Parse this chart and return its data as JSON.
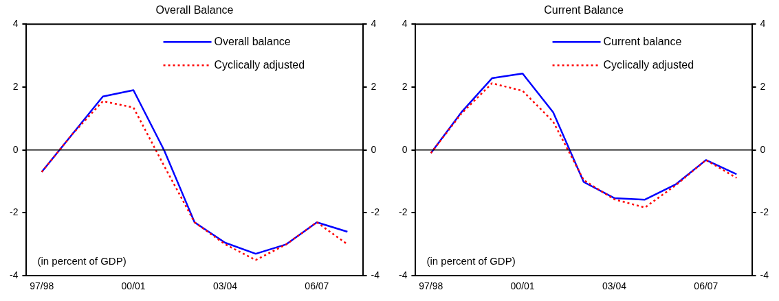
{
  "chart_data": [
    {
      "type": "line",
      "title": "Overall Balance",
      "categories": [
        "97/98",
        null,
        null,
        "00/01",
        null,
        null,
        "03/04",
        null,
        null,
        "06/07",
        null
      ],
      "marker": "none",
      "legend": "top right",
      "ylim": [
        -4,
        4
      ],
      "yticks": [
        -4,
        -2,
        0,
        2,
        4
      ],
      "y2lim": [
        -4,
        4
      ],
      "y2ticks": [
        -4,
        -2,
        0,
        2,
        4
      ],
      "ref_lines": [
        {
          "axis": "y",
          "value": 0,
          "color": "#000000"
        }
      ],
      "annotations": [
        "(in percent of GDP)"
      ],
      "series": [
        {
          "name": "Overall balance",
          "color": "#0000ff",
          "line_style": "solid",
          "values": [
            -0.7,
            0.5,
            1.7,
            1.9,
            0,
            -2.3,
            -2.95,
            -3.3,
            -3.0,
            -2.3,
            -2.6
          ]
        },
        {
          "name": "Cyclically adjusted",
          "color": "#ff0000",
          "line_style": "dotted",
          "values": [
            -0.7,
            0.5,
            1.55,
            1.35,
            -0.5,
            -2.3,
            -3.0,
            -3.5,
            -3.0,
            -2.3,
            -3.0
          ]
        }
      ]
    },
    {
      "type": "line",
      "title": "Current Balance",
      "categories": [
        "97/98",
        null,
        null,
        "00/01",
        null,
        null,
        "03/04",
        null,
        null,
        "06/07",
        null
      ],
      "marker": "none",
      "legend": "top right",
      "ylim": [
        -4,
        4
      ],
      "yticks": [
        -4,
        -2,
        0,
        2,
        4
      ],
      "y2lim": [
        -4,
        4
      ],
      "y2ticks": [
        -4,
        -2,
        0,
        2,
        4
      ],
      "ref_lines": [
        {
          "axis": "y",
          "value": 0,
          "color": "#000000"
        }
      ],
      "annotations": [
        "(in percent of GDP)"
      ],
      "series": [
        {
          "name": "Current balance",
          "color": "#0000ff",
          "line_style": "solid",
          "values": [
            -0.1,
            1.2,
            2.28,
            2.43,
            1.2,
            -1.02,
            -1.53,
            -1.58,
            -1.1,
            -0.32,
            -0.77
          ]
        },
        {
          "name": "Cyclically adjusted",
          "color": "#ff0000",
          "line_style": "dotted",
          "values": [
            -0.1,
            1.16,
            2.12,
            1.88,
            0.9,
            -0.96,
            -1.57,
            -1.83,
            -1.13,
            -0.32,
            -0.89
          ]
        }
      ]
    }
  ]
}
